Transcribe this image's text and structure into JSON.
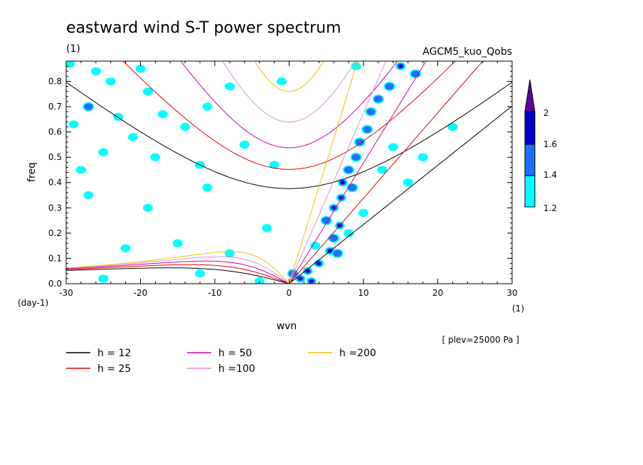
{
  "chart_data": {
    "type": "contour",
    "title": "eastward wind S-T power spectrum",
    "subtitle_left": "(1)",
    "subtitle_right": "AGCM5_kuo_Qobs",
    "xlabel": "wvn",
    "ylabel": "freq",
    "x_unit": "(1)",
    "y_unit": "(day-1)",
    "xlim": [
      -30,
      30
    ],
    "ylim": [
      0,
      0.88
    ],
    "x_ticks": [
      -30,
      -20,
      -10,
      0,
      10,
      20,
      30
    ],
    "x_tick_labels": [
      "-30",
      "-20",
      "-10",
      "0",
      "10",
      "20",
      "30"
    ],
    "y_ticks": [
      0,
      0.1,
      0.2,
      0.3,
      0.4,
      0.5,
      0.6,
      0.7,
      0.8
    ],
    "y_tick_labels": [
      "0.0",
      "0.1",
      "0.2",
      "0.3",
      "0.4",
      "0.5",
      "0.6",
      "0.7",
      "0.8"
    ],
    "footnote": "[ plev=25000 Pa ]",
    "colorbar": {
      "levels": [
        1.2,
        1.4,
        1.6,
        2
      ],
      "labels": [
        "1.2",
        "1.4",
        "1.6",
        "2"
      ],
      "colors": [
        "#00ffff",
        "#1e6eff",
        "#0000c8",
        "#5a00a0"
      ]
    },
    "dispersion_curves": {
      "equivalent_depths": [
        12,
        25,
        50,
        100,
        200
      ],
      "colors": [
        "#000000",
        "#e00000",
        "#d000a0",
        "#dd90dd",
        "#f0c000"
      ],
      "legend_labels": [
        "h = 12",
        "h = 25",
        "h = 50",
        "h =100",
        "h =200"
      ]
    },
    "power_blobs": [
      {
        "x": 1.5,
        "y": 0.02,
        "level": 3
      },
      {
        "x": 2.5,
        "y": 0.05,
        "level": 3
      },
      {
        "x": 0.5,
        "y": 0.04,
        "level": 2
      },
      {
        "x": 3.0,
        "y": 0.01,
        "level": 3
      },
      {
        "x": 4.0,
        "y": 0.08,
        "level": 3
      },
      {
        "x": 5.5,
        "y": 0.13,
        "level": 3
      },
      {
        "x": 6.0,
        "y": 0.18,
        "level": 2
      },
      {
        "x": 6.8,
        "y": 0.23,
        "level": 3
      },
      {
        "x": 5.0,
        "y": 0.25,
        "level": 2
      },
      {
        "x": 6.0,
        "y": 0.3,
        "level": 3
      },
      {
        "x": 7.0,
        "y": 0.34,
        "level": 3
      },
      {
        "x": 7.2,
        "y": 0.4,
        "level": 3
      },
      {
        "x": 8.5,
        "y": 0.38,
        "level": 2
      },
      {
        "x": 8.0,
        "y": 0.45,
        "level": 2
      },
      {
        "x": 9.0,
        "y": 0.5,
        "level": 2
      },
      {
        "x": 9.5,
        "y": 0.56,
        "level": 2
      },
      {
        "x": 10.5,
        "y": 0.61,
        "level": 2
      },
      {
        "x": 11.0,
        "y": 0.68,
        "level": 2
      },
      {
        "x": 12.0,
        "y": 0.73,
        "level": 2
      },
      {
        "x": 13.5,
        "y": 0.78,
        "level": 2
      },
      {
        "x": 15.0,
        "y": 0.86,
        "level": 3
      },
      {
        "x": 17.0,
        "y": 0.83,
        "level": 2
      },
      {
        "x": 6.5,
        "y": 0.12,
        "level": 2
      },
      {
        "x": 8.0,
        "y": 0.2,
        "level": 1
      },
      {
        "x": 3.5,
        "y": 0.15,
        "level": 1
      },
      {
        "x": 10.0,
        "y": 0.28,
        "level": 1
      },
      {
        "x": -29.5,
        "y": 0.87,
        "level": 1
      },
      {
        "x": -26.0,
        "y": 0.84,
        "level": 1
      },
      {
        "x": -24.0,
        "y": 0.8,
        "level": 1
      },
      {
        "x": -20.0,
        "y": 0.85,
        "level": 1
      },
      {
        "x": -19.0,
        "y": 0.76,
        "level": 1
      },
      {
        "x": -27.0,
        "y": 0.7,
        "level": 2
      },
      {
        "x": -23.0,
        "y": 0.66,
        "level": 1
      },
      {
        "x": -17.0,
        "y": 0.67,
        "level": 1
      },
      {
        "x": -14.0,
        "y": 0.62,
        "level": 1
      },
      {
        "x": -11.0,
        "y": 0.7,
        "level": 1
      },
      {
        "x": -29.0,
        "y": 0.63,
        "level": 1
      },
      {
        "x": -21.0,
        "y": 0.58,
        "level": 1
      },
      {
        "x": -8.0,
        "y": 0.78,
        "level": 1
      },
      {
        "x": -6.0,
        "y": 0.55,
        "level": 1
      },
      {
        "x": -25.0,
        "y": 0.52,
        "level": 1
      },
      {
        "x": -18.0,
        "y": 0.5,
        "level": 1
      },
      {
        "x": -12.0,
        "y": 0.47,
        "level": 1
      },
      {
        "x": -28.0,
        "y": 0.45,
        "level": 1
      },
      {
        "x": -11.0,
        "y": 0.38,
        "level": 1
      },
      {
        "x": -27.0,
        "y": 0.35,
        "level": 1
      },
      {
        "x": -19.0,
        "y": 0.3,
        "level": 1
      },
      {
        "x": -3.0,
        "y": 0.22,
        "level": 1
      },
      {
        "x": -22.0,
        "y": 0.14,
        "level": 1
      },
      {
        "x": -15.0,
        "y": 0.16,
        "level": 1
      },
      {
        "x": -8.0,
        "y": 0.12,
        "level": 1
      },
      {
        "x": -25.0,
        "y": 0.02,
        "level": 1
      },
      {
        "x": -12.0,
        "y": 0.04,
        "level": 1
      },
      {
        "x": -4.0,
        "y": 0.01,
        "level": 1
      },
      {
        "x": 14.0,
        "y": 0.54,
        "level": 1
      },
      {
        "x": 18.0,
        "y": 0.5,
        "level": 1
      },
      {
        "x": 12.5,
        "y": 0.45,
        "level": 1
      },
      {
        "x": 22.0,
        "y": 0.62,
        "level": 1
      },
      {
        "x": 16.0,
        "y": 0.4,
        "level": 1
      },
      {
        "x": 9.0,
        "y": 0.86,
        "level": 1
      },
      {
        "x": -2.0,
        "y": 0.47,
        "level": 1
      },
      {
        "x": -1.0,
        "y": 0.8,
        "level": 1
      }
    ]
  }
}
